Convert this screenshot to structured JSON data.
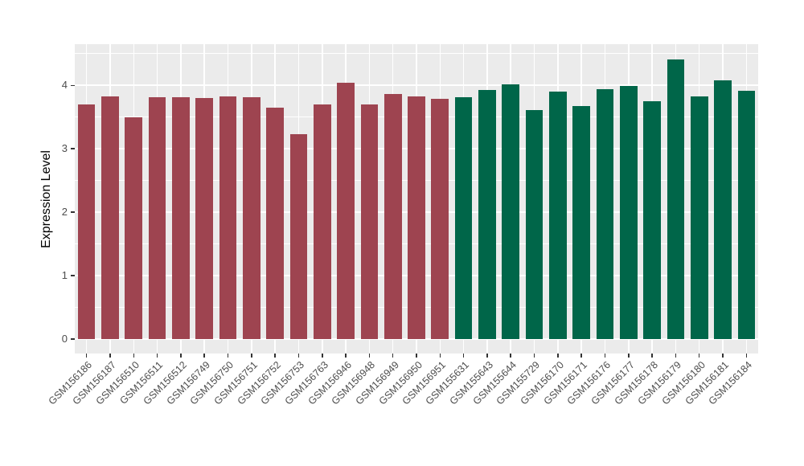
{
  "style": {
    "panel_bg": "#EBEBEB",
    "grid_color": "#FFFFFF",
    "axis_text_color": "#4D4D4D",
    "axis_title_color": "#000000",
    "tick_mark_color": "#333333",
    "bar_color_group1": "#9E4450",
    "bar_color_group2": "#006649"
  },
  "chart_data": {
    "type": "bar",
    "title": "",
    "xlabel": "",
    "ylabel": "Expression Level",
    "ylim": [
      -0.23,
      4.65
    ],
    "yticks": [
      0,
      1,
      2,
      3,
      4
    ],
    "yticks_minor": [
      0.5,
      1.5,
      2.5,
      3.5,
      4.5
    ],
    "grid": true,
    "legend_position": "none",
    "categories": [
      "GSM156186",
      "GSM156187",
      "GSM156510",
      "GSM156511",
      "GSM156512",
      "GSM156749",
      "GSM156750",
      "GSM156751",
      "GSM156752",
      "GSM156753",
      "GSM156763",
      "GSM156946",
      "GSM156948",
      "GSM156949",
      "GSM156950",
      "GSM156951",
      "GSM155631",
      "GSM155643",
      "GSM155644",
      "GSM155729",
      "GSM156170",
      "GSM156171",
      "GSM156176",
      "GSM156177",
      "GSM156178",
      "GSM156179",
      "GSM156180",
      "GSM156181",
      "GSM156184"
    ],
    "values": [
      3.7,
      3.83,
      3.5,
      3.81,
      3.81,
      3.8,
      3.83,
      3.81,
      3.65,
      3.23,
      3.7,
      4.04,
      3.7,
      3.86,
      3.83,
      3.79,
      3.81,
      3.93,
      4.01,
      3.61,
      3.9,
      3.67,
      3.94,
      3.99,
      3.75,
      4.41,
      3.83,
      4.08,
      3.92
    ],
    "bar_colors": [
      "#9E4450",
      "#9E4450",
      "#9E4450",
      "#9E4450",
      "#9E4450",
      "#9E4450",
      "#9E4450",
      "#9E4450",
      "#9E4450",
      "#9E4450",
      "#9E4450",
      "#9E4450",
      "#9E4450",
      "#9E4450",
      "#9E4450",
      "#9E4450",
      "#006649",
      "#006649",
      "#006649",
      "#006649",
      "#006649",
      "#006649",
      "#006649",
      "#006649",
      "#006649",
      "#006649",
      "#006649",
      "#006649",
      "#006649"
    ]
  }
}
